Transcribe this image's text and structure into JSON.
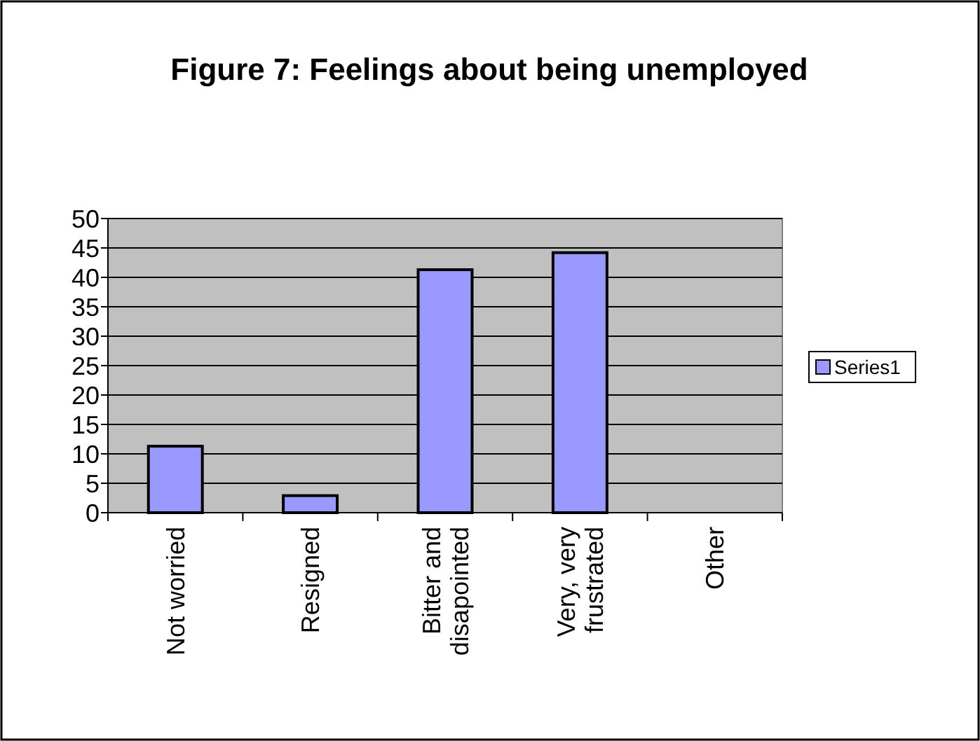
{
  "chart_data": {
    "type": "bar",
    "title": "Figure 7: Feelings about being unemployed",
    "categories": [
      "Not worried",
      "Resigned",
      "Bitter and disapointed",
      "Very, very frustrated",
      "Other"
    ],
    "series": [
      {
        "name": "Series1",
        "color": "#9999ff",
        "values": [
          11.3,
          2.9,
          41.3,
          44.2,
          0
        ]
      }
    ],
    "ylim": [
      0,
      50
    ],
    "yticks": [
      0,
      5,
      10,
      15,
      20,
      25,
      30,
      35,
      40,
      45,
      50
    ],
    "grid": "y",
    "legend": "right"
  }
}
